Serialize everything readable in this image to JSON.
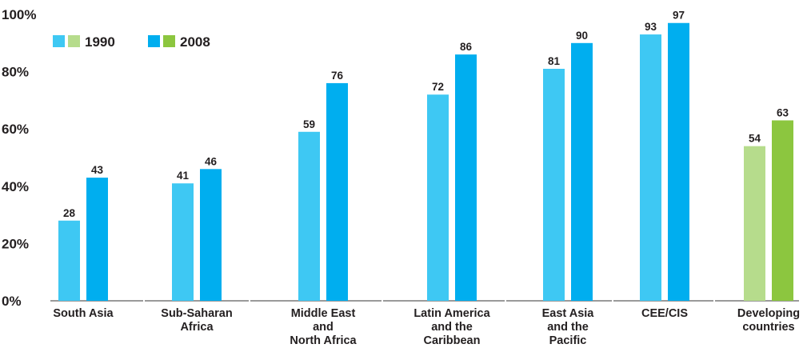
{
  "chart_data": {
    "type": "bar",
    "title": "",
    "xlabel": "",
    "ylabel": "",
    "ylim": [
      0,
      100
    ],
    "yticks": [
      0,
      20,
      40,
      60,
      80,
      100
    ],
    "ytick_labels": [
      "0%",
      "20%",
      "40%",
      "60%",
      "80%",
      "100%"
    ],
    "grid": false,
    "legend_position": "top-left",
    "categories": [
      [
        "South Asia"
      ],
      [
        "Sub-Saharan",
        "Africa"
      ],
      [
        "Middle East",
        "and",
        "North Africa"
      ],
      [
        "Latin America",
        "and the",
        "Caribbean"
      ],
      [
        "East Asia",
        "and the",
        "Pacific"
      ],
      [
        "CEE/CIS"
      ],
      [
        "Developing",
        "countries"
      ]
    ],
    "series": [
      {
        "name": "1990",
        "values": [
          28,
          41,
          59,
          72,
          81,
          93,
          54
        ]
      },
      {
        "name": "2008",
        "values": [
          43,
          46,
          76,
          86,
          90,
          97,
          63
        ]
      }
    ],
    "colors": {
      "regional_1990": "#3ec8f3",
      "regional_2008": "#00aeef",
      "aggregate_1990": "#b6dc8c",
      "aggregate_2008": "#8cc63f",
      "axis": "#9a9a9a",
      "text": "#231f20"
    },
    "legend": {
      "items": [
        {
          "label": "1990",
          "swatches": [
            "#3ec8f3",
            "#b6dc8c"
          ]
        },
        {
          "label": "2008",
          "swatches": [
            "#00aeef",
            "#8cc63f"
          ]
        }
      ]
    },
    "aggregate_category_index": 6
  }
}
